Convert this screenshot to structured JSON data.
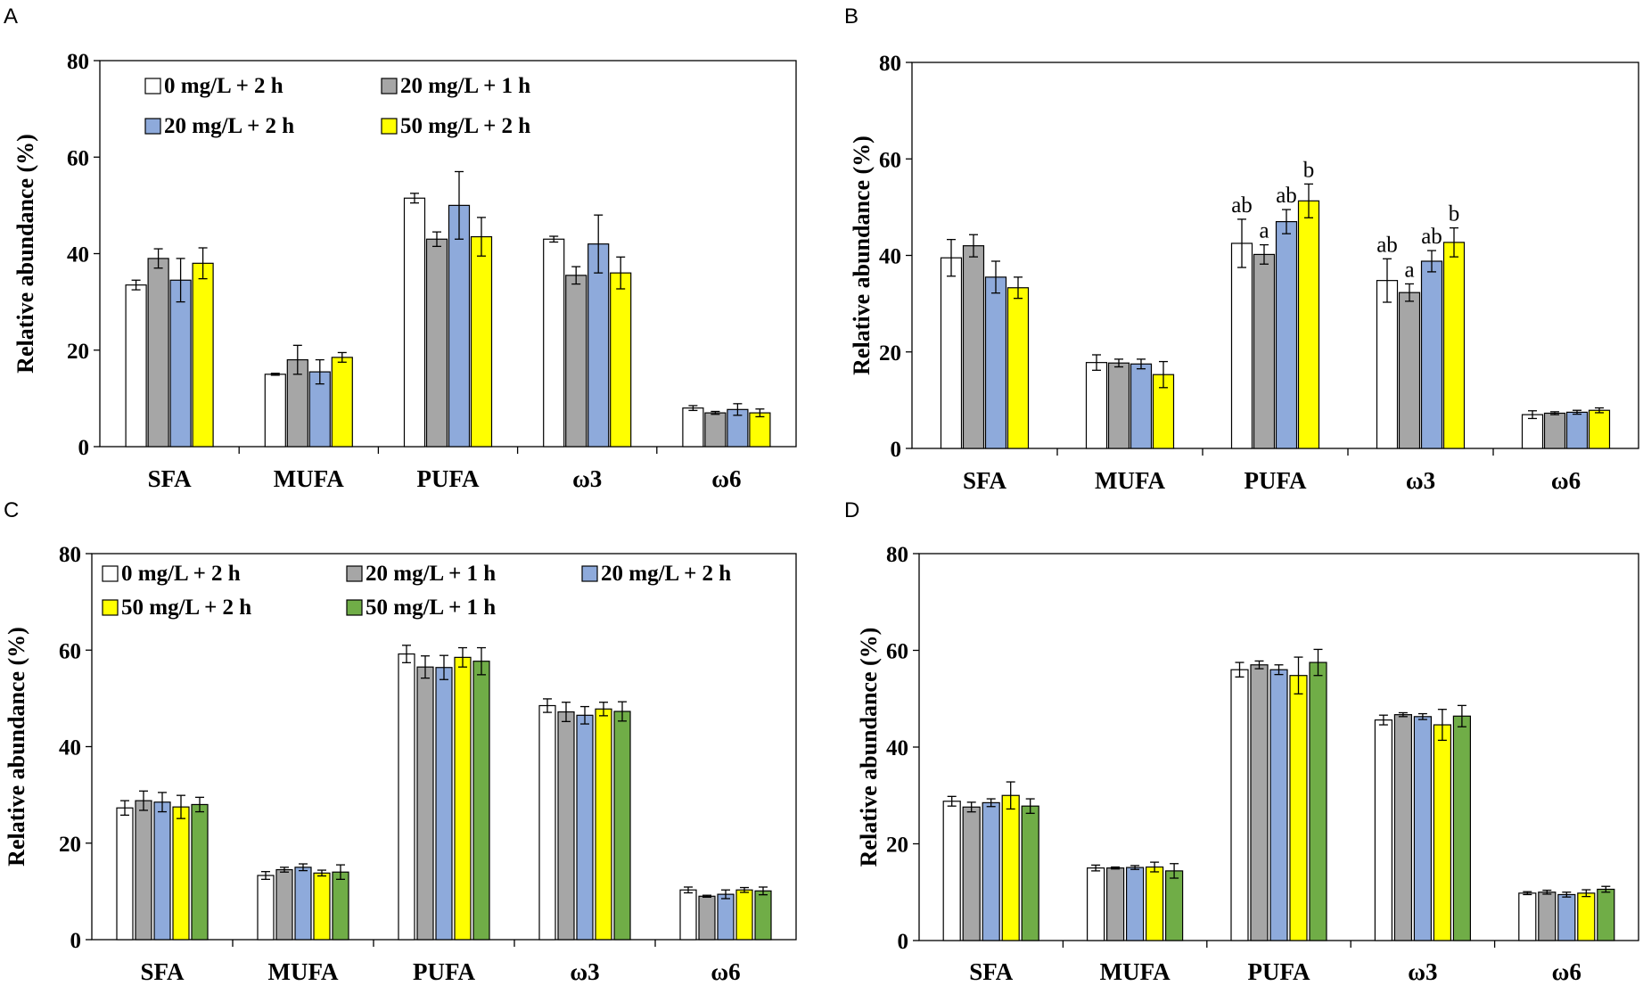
{
  "colors": {
    "0 mg/L + 2 h": "#ffffff",
    "20 mg/L + 1 h": "#a6a6a6",
    "20 mg/L + 2 h": "#8eaadb",
    "50 mg/L + 2 h": "#ffff00",
    "50 mg/L + 1 h": "#70ad47"
  },
  "chart_data": [
    {
      "panel": "A",
      "type": "bar",
      "title": "",
      "xlabel": "",
      "ylabel": "Relative abundance (%)",
      "ylim": [
        0,
        80
      ],
      "yticks": [
        "0",
        "20",
        "40",
        "60",
        "80"
      ],
      "categories": [
        "SFA",
        "MUFA",
        "PUFA",
        "ω3",
        "ω6"
      ],
      "legend_position": "top-left",
      "series": [
        {
          "name": "0 mg/L  + 2 h",
          "key": "0 mg/L + 2 h",
          "values": [
            33.5,
            15.0,
            51.5,
            43.0,
            8.0
          ],
          "errors": [
            1.0,
            0.2,
            1.0,
            0.6,
            0.5
          ],
          "labels": [
            "",
            "",
            "",
            "",
            ""
          ]
        },
        {
          "name": "20 mg/L  +  1 h",
          "key": "20 mg/L + 1 h",
          "values": [
            39.0,
            18.0,
            43.0,
            35.5,
            7.0
          ],
          "errors": [
            2.0,
            3.0,
            1.5,
            1.8,
            0.3
          ],
          "labels": [
            "",
            "",
            "",
            "",
            ""
          ]
        },
        {
          "name": "20 mg/L  +  2 h",
          "key": "20 mg/L + 2 h",
          "values": [
            34.5,
            15.5,
            50.0,
            42.0,
            7.7
          ],
          "errors": [
            4.5,
            2.5,
            7.0,
            6.0,
            1.2
          ],
          "labels": [
            "",
            "",
            "",
            "",
            ""
          ]
        },
        {
          "name": "50 mg/L  +  2 h",
          "key": "50 mg/L + 2 h",
          "values": [
            38.0,
            18.5,
            43.5,
            36.0,
            7.0
          ],
          "errors": [
            3.2,
            1.0,
            4.0,
            3.3,
            0.8
          ],
          "labels": [
            "",
            "",
            "",
            "",
            ""
          ]
        }
      ]
    },
    {
      "panel": "B",
      "type": "bar",
      "title": "",
      "xlabel": "",
      "ylabel": "Relative abundance (%)",
      "ylim": [
        0,
        80
      ],
      "yticks": [
        "0",
        "20",
        "40",
        "60",
        "80"
      ],
      "categories": [
        "SFA",
        "MUFA",
        "PUFA",
        "ω3",
        "ω6"
      ],
      "legend_position": "none",
      "series": [
        {
          "name": "0 mg/L  + 2 h",
          "key": "0 mg/L + 2 h",
          "values": [
            39.5,
            17.8,
            42.5,
            34.8,
            7.0
          ],
          "errors": [
            3.8,
            1.6,
            5.0,
            4.5,
            0.8
          ],
          "labels": [
            "",
            "",
            "ab",
            "ab",
            ""
          ]
        },
        {
          "name": "20 mg/L  +  1 h",
          "key": "20 mg/L + 1 h",
          "values": [
            42.0,
            17.7,
            40.2,
            32.3,
            7.3
          ],
          "errors": [
            2.3,
            0.8,
            2.0,
            1.8,
            0.3
          ],
          "labels": [
            "",
            "",
            "a",
            "a",
            ""
          ]
        },
        {
          "name": "20 mg/L  +  2 h",
          "key": "20 mg/L + 2 h",
          "values": [
            35.5,
            17.5,
            47.0,
            38.8,
            7.5
          ],
          "errors": [
            3.3,
            1.0,
            2.5,
            2.2,
            0.4
          ],
          "labels": [
            "",
            "",
            "ab",
            "ab",
            ""
          ]
        },
        {
          "name": "50 mg/L  +  2 h",
          "key": "50 mg/L + 2 h",
          "values": [
            33.3,
            15.3,
            51.3,
            42.7,
            7.9
          ],
          "errors": [
            2.2,
            2.7,
            3.5,
            3.0,
            0.5
          ],
          "labels": [
            "",
            "",
            "b",
            "b",
            ""
          ]
        }
      ]
    },
    {
      "panel": "C",
      "type": "bar",
      "title": "",
      "xlabel": "",
      "ylabel": "Relative abundance (%)",
      "ylim": [
        0,
        80
      ],
      "yticks": [
        "0",
        "20",
        "40",
        "60",
        "80"
      ],
      "categories": [
        "SFA",
        "MUFA",
        "PUFA",
        "ω3",
        "ω6"
      ],
      "legend_position": "top",
      "series": [
        {
          "name": "0 mg/L  + 2 h",
          "key": "0 mg/L + 2 h",
          "values": [
            27.3,
            13.3,
            59.2,
            48.5,
            10.3
          ],
          "errors": [
            1.5,
            0.8,
            1.8,
            1.4,
            0.6
          ],
          "labels": [
            "",
            "",
            "",
            "",
            ""
          ]
        },
        {
          "name": "20 mg/L  +  1 h",
          "key": "20 mg/L + 1 h",
          "values": [
            28.8,
            14.5,
            56.5,
            47.2,
            9.0
          ],
          "errors": [
            2.0,
            0.5,
            2.3,
            2.0,
            0.2
          ],
          "labels": [
            "",
            "",
            "",
            "",
            ""
          ]
        },
        {
          "name": "20 mg/L  +  2 h",
          "key": "20 mg/L + 2 h",
          "values": [
            28.5,
            15.0,
            56.4,
            46.5,
            9.4
          ],
          "errors": [
            2.0,
            0.7,
            2.5,
            1.8,
            0.9
          ],
          "labels": [
            "",
            "",
            "",
            "",
            ""
          ]
        },
        {
          "name": "50 mg/L  +  2 h",
          "key": "50 mg/L + 2 h",
          "values": [
            27.5,
            13.8,
            58.5,
            47.8,
            10.3
          ],
          "errors": [
            2.4,
            0.6,
            2.0,
            1.4,
            0.5
          ],
          "labels": [
            "",
            "",
            "",
            "",
            ""
          ]
        },
        {
          "name": "50 mg/L  + 1 h",
          "key": "50 mg/L + 1 h",
          "values": [
            28.0,
            14.0,
            57.7,
            47.3,
            10.1
          ],
          "errors": [
            1.5,
            1.5,
            2.8,
            2.0,
            0.8
          ],
          "labels": [
            "",
            "",
            "",
            "",
            ""
          ]
        }
      ]
    },
    {
      "panel": "D",
      "type": "bar",
      "title": "",
      "xlabel": "",
      "ylabel": "Relative abundance (%)",
      "ylim": [
        0,
        80
      ],
      "yticks": [
        "0",
        "20",
        "40",
        "60",
        "80"
      ],
      "categories": [
        "SFA",
        "MUFA",
        "PUFA",
        "ω3",
        "ω6"
      ],
      "legend_position": "none",
      "series": [
        {
          "name": "0 mg/L  + 2 h",
          "key": "0 mg/L + 2 h",
          "values": [
            28.8,
            15.0,
            56.0,
            45.6,
            9.8
          ],
          "errors": [
            1.0,
            0.6,
            1.5,
            1.0,
            0.3
          ],
          "labels": [
            "",
            "",
            "",
            "",
            ""
          ]
        },
        {
          "name": "20 mg/L  +  1 h",
          "key": "20 mg/L + 1 h",
          "values": [
            27.6,
            15.0,
            57.0,
            46.7,
            10.0
          ],
          "errors": [
            1.0,
            0.2,
            0.8,
            0.4,
            0.4
          ],
          "labels": [
            "",
            "",
            "",
            "",
            ""
          ]
        },
        {
          "name": "20 mg/L  +  2 h",
          "key": "20 mg/L + 2 h",
          "values": [
            28.5,
            15.1,
            56.0,
            46.3,
            9.5
          ],
          "errors": [
            0.8,
            0.4,
            1.0,
            0.6,
            0.5
          ],
          "labels": [
            "",
            "",
            "",
            "",
            ""
          ]
        },
        {
          "name": "50 mg/L  +  2 h",
          "key": "50 mg/L + 2 h",
          "values": [
            30.0,
            15.2,
            54.8,
            44.6,
            9.8
          ],
          "errors": [
            2.8,
            1.0,
            3.8,
            3.2,
            0.7
          ],
          "labels": [
            "",
            "",
            "",
            "",
            ""
          ]
        },
        {
          "name": "50 mg/L  + 1 h",
          "key": "50 mg/L + 1 h",
          "values": [
            27.8,
            14.4,
            57.5,
            46.4,
            10.6
          ],
          "errors": [
            1.5,
            1.5,
            2.7,
            2.2,
            0.6
          ],
          "labels": [
            "",
            "",
            "",
            "",
            ""
          ]
        }
      ]
    }
  ]
}
